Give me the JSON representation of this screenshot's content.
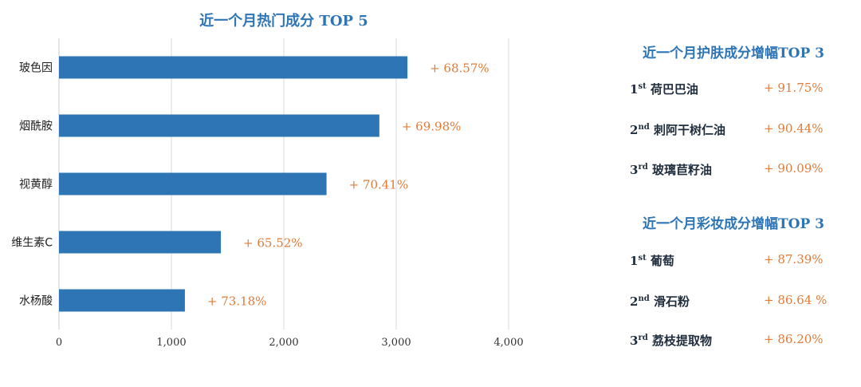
{
  "chart_data": {
    "type": "bar",
    "orientation": "horizontal",
    "title": "近一个月热门成分 TOP 5",
    "categories": [
      "玻色因",
      "烟酰胺",
      "视黄醇",
      "维生素C",
      "水杨酸"
    ],
    "values": [
      3100,
      2850,
      2380,
      1440,
      1120
    ],
    "data_labels": [
      "+ 68.57%",
      "+ 69.98%",
      "+ 70.41%",
      "+ 65.52%",
      "+ 73.18%"
    ],
    "xlim": [
      0,
      4000
    ],
    "xticks": [
      0,
      1000,
      2000,
      3000,
      4000
    ],
    "xtick_labels": [
      "0",
      "1,000",
      "2,000",
      "3,000",
      "4,000"
    ],
    "grid": "vertical",
    "bar_color": "#2e75b6",
    "label_color": "#e07b39"
  },
  "skincare": {
    "title": "近一个月护肤成分增幅TOP 3",
    "items": [
      {
        "rank_num": "1",
        "rank_suffix": "st",
        "name": "荷巴巴油",
        "value": "+ 91.75%"
      },
      {
        "rank_num": "2",
        "rank_suffix": "nd",
        "name": "刺阿干树仁油",
        "value": "+ 90.44%"
      },
      {
        "rank_num": "3",
        "rank_suffix": "rd",
        "name": "玻璃苣籽油",
        "value": "+ 90.09%"
      }
    ]
  },
  "makeup": {
    "title": "近一个月彩妆成分增幅TOP 3",
    "items": [
      {
        "rank_num": "1",
        "rank_suffix": "st",
        "name": "葡萄",
        "value": "+ 87.39%"
      },
      {
        "rank_num": "2",
        "rank_suffix": "nd",
        "name": "滑石粉",
        "value": "+ 86.64 %"
      },
      {
        "rank_num": "3",
        "rank_suffix": "rd",
        "name": "荔枝提取物",
        "value": "+ 86.20%"
      }
    ]
  },
  "colors": {
    "accent": "#2e75b6",
    "highlight": "#e07b39",
    "text": "#1f2d3d",
    "grid": "#d9d9d9"
  }
}
